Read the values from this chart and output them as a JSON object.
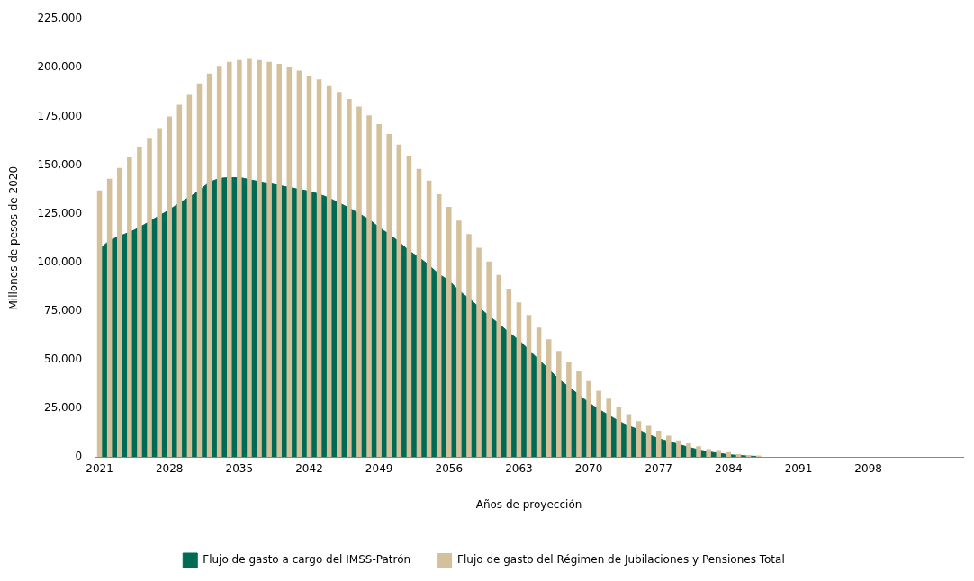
{
  "chart_data": {
    "type": "bar",
    "xlabel": "Años de proyección",
    "ylabel": "Millones de pesos de 2020",
    "categories": [
      "2021",
      null,
      null,
      null,
      null,
      null,
      null,
      "2028",
      null,
      null,
      null,
      null,
      null,
      null,
      "2035",
      null,
      null,
      null,
      null,
      null,
      null,
      "2042",
      null,
      null,
      null,
      null,
      null,
      null,
      "2049",
      null,
      null,
      null,
      null,
      null,
      null,
      "2056",
      null,
      null,
      null,
      null,
      null,
      null,
      "2063",
      null,
      null,
      null,
      null,
      null,
      null,
      "2070",
      null,
      null,
      null,
      null,
      null,
      null,
      "2077",
      null,
      null,
      null,
      null,
      null,
      null,
      "2084",
      null,
      null,
      null,
      null,
      null,
      null,
      "2091",
      null,
      null,
      null,
      null,
      null,
      null,
      "2098",
      null,
      null,
      null,
      null,
      null,
      null,
      null,
      null,
      null
    ],
    "series": [
      {
        "name": "Flujo de gasto a cargo del IMSS-Patrón",
        "type": "area",
        "color": "#006b54",
        "values": [
          107000,
          111000,
          113500,
          115500,
          118000,
          121000,
          124000,
          127000,
          130500,
          133500,
          137000,
          141000,
          143000,
          143500,
          143500,
          142500,
          141500,
          140500,
          139500,
          138500,
          137500,
          136500,
          135000,
          133000,
          130500,
          128000,
          125000,
          122000,
          118000,
          114500,
          110500,
          106000,
          102500,
          98500,
          94000,
          90500,
          85500,
          81500,
          77000,
          72500,
          68500,
          64000,
          60000,
          55000,
          50000,
          45000,
          40000,
          36000,
          32000,
          28000,
          24500,
          21500,
          18500,
          16000,
          14000,
          11500,
          9500,
          8000,
          6500,
          5000,
          3700,
          2700,
          1900,
          1200,
          800,
          500,
          300,
          null,
          null,
          null,
          null,
          null,
          null,
          null,
          null,
          null,
          null,
          null,
          null,
          null,
          null,
          null,
          null,
          null,
          null,
          null,
          null
        ]
      },
      {
        "name": "Flujo de gasto del Régimen de Jubilaciones y Pensiones Total",
        "color": "#d4c19c",
        "values": [
          137000,
          143000,
          148500,
          154000,
          159000,
          164000,
          169000,
          175000,
          181000,
          186000,
          192000,
          197000,
          201000,
          203000,
          204000,
          204500,
          204000,
          203000,
          202000,
          200500,
          198500,
          196000,
          194000,
          190500,
          187500,
          184000,
          180000,
          175500,
          171000,
          166000,
          160500,
          154500,
          148000,
          142000,
          135000,
          128500,
          121500,
          114500,
          107500,
          100500,
          93500,
          86500,
          79500,
          73000,
          66500,
          60500,
          54500,
          49000,
          44000,
          39000,
          34000,
          30000,
          26000,
          22000,
          18500,
          16000,
          13500,
          11000,
          8500,
          7000,
          5500,
          4000,
          3500,
          2500,
          1500,
          1000,
          800,
          null,
          null,
          null,
          null,
          null,
          null,
          null,
          null,
          null,
          null,
          null,
          null,
          null,
          null,
          null,
          null,
          null,
          null,
          null,
          null
        ]
      }
    ],
    "ylim": [
      0,
      225000
    ],
    "yticks": [
      {
        "value": 0,
        "label": "0"
      },
      {
        "value": 25000,
        "label": "25,000"
      },
      {
        "value": 50000,
        "label": "50,000"
      },
      {
        "value": 75000,
        "label": "75,000"
      },
      {
        "value": 100000,
        "label": "100,000"
      },
      {
        "value": 125000,
        "label": "125,000"
      },
      {
        "value": 150000,
        "label": "150,000"
      },
      {
        "value": 175000,
        "label": "175,000"
      },
      {
        "value": 200000,
        "label": "200,000"
      },
      {
        "value": 225000,
        "label": "225,000"
      }
    ],
    "grid": false,
    "legend": "bottom"
  }
}
